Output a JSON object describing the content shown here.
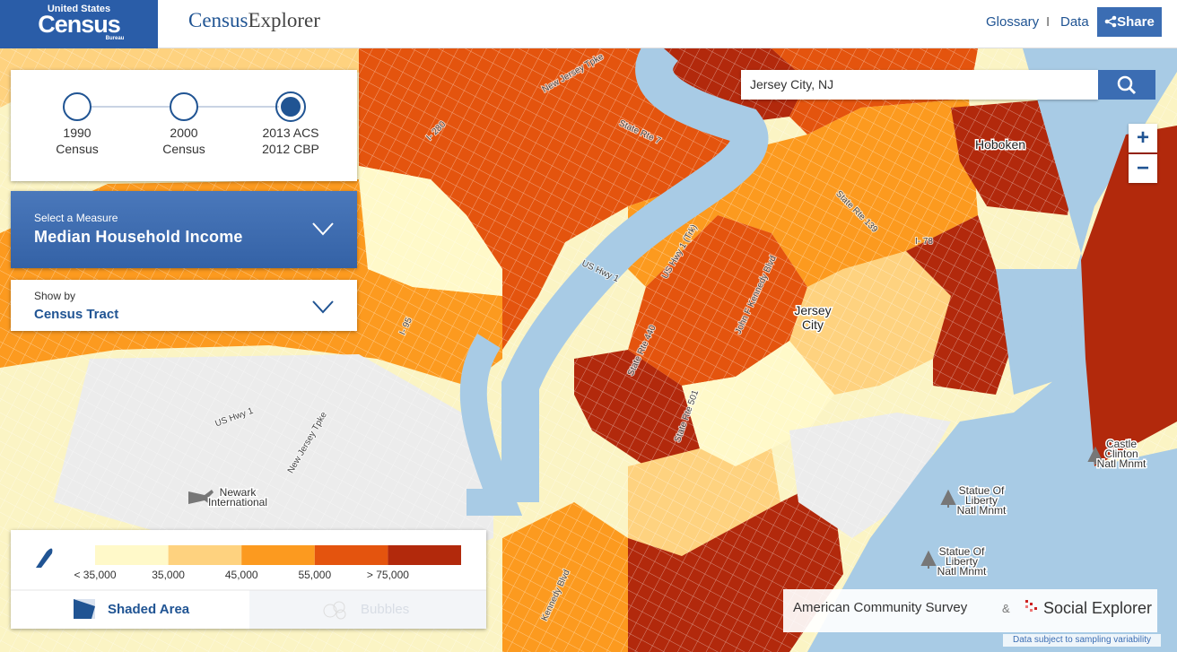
{
  "header": {
    "logo_top": "United States",
    "logo_main": "Census",
    "logo_sub": "Bureau",
    "app_title_1": "Census",
    "app_title_2": "Explorer",
    "nav": [
      "Glossary",
      "I",
      "Data"
    ],
    "share": "Share"
  },
  "search": {
    "value": "Jersey City, NJ"
  },
  "zoom": {
    "in": "+",
    "out": "−"
  },
  "timeline": {
    "steps": [
      {
        "lines": [
          "1990",
          "Census"
        ],
        "selected": false
      },
      {
        "lines": [
          "2000",
          "Census"
        ],
        "selected": false
      },
      {
        "lines": [
          "2013 ACS",
          "2012 CBP"
        ],
        "selected": true
      }
    ]
  },
  "measure": {
    "label": "Select a Measure",
    "value": "Median Household Income"
  },
  "show_by": {
    "label": "Show by",
    "value": "Census Tract"
  },
  "legend": {
    "colors": [
      "#fff9c9",
      "#fed27f",
      "#fc9a1f",
      "#e4540e",
      "#b2290c"
    ],
    "labels": [
      "< 35,000",
      "35,000",
      "45,000",
      "55,000",
      "> 75,000"
    ],
    "tabs": [
      "Shaded Area",
      "Bubbles"
    ]
  },
  "map_labels": [
    {
      "lines": [
        "Hoboken"
      ]
    },
    {
      "lines": [
        "Jersey",
        "City"
      ]
    },
    {
      "lines": [
        "Newark",
        "International"
      ]
    },
    {
      "lines": [
        "Statue Of",
        "Liberty",
        "Natl Mnmt"
      ]
    },
    {
      "lines": [
        "Statue Of",
        "Liberty",
        "Natl Mnmt"
      ]
    },
    {
      "lines": [
        "Castle",
        "Clinton",
        "Natl Mnmt"
      ]
    },
    {
      "lines": [
        "New Jersey Tpke"
      ]
    },
    {
      "lines": [
        "State Rte 7"
      ]
    },
    {
      "lines": [
        "US Hwy 1"
      ]
    },
    {
      "lines": [
        "US Hwy 1 (Trk)"
      ]
    },
    {
      "lines": [
        "State Rte 440"
      ]
    },
    {
      "lines": [
        "John F Kennedy Blvd"
      ]
    },
    {
      "lines": [
        "I- 78"
      ]
    },
    {
      "lines": [
        "I- 95"
      ]
    },
    {
      "lines": [
        "US Hwy 1"
      ]
    },
    {
      "lines": [
        "New Jersey Tpke"
      ]
    },
    {
      "lines": [
        "I- 280"
      ]
    },
    {
      "lines": [
        "State Rte 501"
      ]
    },
    {
      "lines": [
        "Kennedy Blvd"
      ]
    },
    {
      "lines": [
        "State Rte 139"
      ]
    }
  ],
  "footer": {
    "sources": [
      "American Community Survey",
      "&",
      "Social Explorer"
    ],
    "note": "Data subject to sampling variability"
  }
}
